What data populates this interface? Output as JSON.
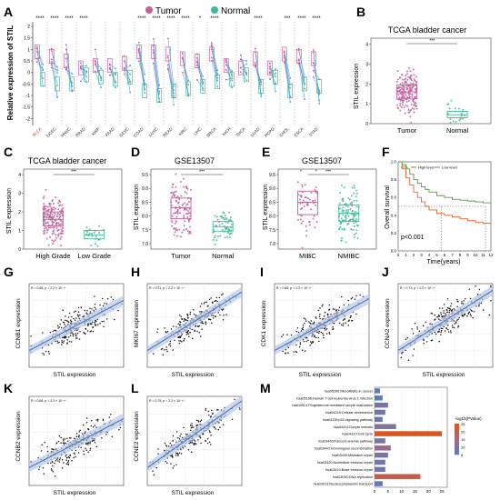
{
  "figure": {
    "panels": {
      "A": {
        "letter": "A"
      },
      "B": {
        "letter": "B"
      },
      "C": {
        "letter": "C"
      },
      "D": {
        "letter": "D"
      },
      "E": {
        "letter": "E"
      },
      "F": {
        "letter": "F"
      },
      "G": {
        "letter": "G"
      },
      "H": {
        "letter": "H"
      },
      "I": {
        "letter": "I"
      },
      "J": {
        "letter": "J"
      },
      "K": {
        "letter": "K"
      },
      "L": {
        "letter": "L"
      },
      "M": {
        "letter": "M"
      }
    },
    "colors": {
      "tumor": "#c0609c",
      "normal": "#3fb89a",
      "line": "#5a8fd0",
      "km_high": "#e1642c",
      "km_low": "#5a9a45",
      "scatter_fit": "#4b78c4",
      "scatter_ci": "#b8c8e6",
      "bar_low": "#4f7fc1",
      "bar_mid": "#a36a84",
      "bar_high": "#d9561f"
    }
  },
  "chart_data": [
    {
      "panel": "A",
      "type": "box",
      "legend": [
        "Tumor",
        "Normal"
      ],
      "ylabel": "Relative expression of STIL",
      "yticks": [
        "-2",
        "-1.5",
        "-1",
        "-0.5",
        "0",
        "0.5",
        "1",
        "1.5",
        "2"
      ],
      "ylim": [
        -2.3,
        2.2
      ],
      "categories": [
        "BLCA",
        "UCEC",
        "HNSC",
        "PRAD",
        "KIRP",
        "PAAD",
        "CESC",
        "COAD",
        "LUSC",
        "READ",
        "KIRC",
        "LIHC",
        "BRCA",
        "KICH",
        "THCA",
        "LUAD",
        "PCPG",
        "CHOL",
        "ESCA",
        "STAD"
      ],
      "significance": [
        "****",
        "****",
        "****",
        "****",
        "",
        "",
        "",
        "****",
        "****",
        "****",
        "****",
        "*",
        "****",
        "",
        "",
        "****",
        "",
        "***",
        "****",
        "****"
      ],
      "tumor_median": [
        0.9,
        0.7,
        0.5,
        0.2,
        0.3,
        0.3,
        0.4,
        0.9,
        0.9,
        0.8,
        0.6,
        0.5,
        0.8,
        0.3,
        0.2,
        0.6,
        0.2,
        0.8,
        0.7,
        0.6
      ],
      "normal_median": [
        -0.3,
        -0.5,
        -0.5,
        -0.1,
        -0.2,
        -0.3,
        -0.2,
        -0.8,
        -1.0,
        -0.8,
        -0.7,
        -0.6,
        -0.4,
        -0.3,
        -0.1,
        -0.6,
        -0.2,
        -0.8,
        -0.5,
        -0.6
      ]
    },
    {
      "panel": "B",
      "type": "box",
      "title": "TCGA bladder cancer",
      "ylabel": "STIL expression",
      "categories": [
        "Tumor",
        "Normal"
      ],
      "yticks": [
        "0",
        "1",
        "2",
        "3",
        "4"
      ],
      "ylim": [
        0,
        4.3
      ],
      "median": [
        1.6,
        0.45
      ],
      "q1": [
        1.25,
        0.3
      ],
      "q3": [
        1.95,
        0.62
      ],
      "significance": "***"
    },
    {
      "panel": "C",
      "type": "box",
      "title": "TCGA bladder cancer",
      "ylabel": "STIL expression",
      "categories": [
        "High Grade",
        "Low Grade"
      ],
      "yticks": [
        "0",
        "1",
        "2",
        "3",
        "4"
      ],
      "ylim": [
        0,
        4.3
      ],
      "median": [
        1.6,
        0.75
      ],
      "q1": [
        1.25,
        0.55
      ],
      "q3": [
        2.0,
        1.0
      ],
      "significance": "***"
    },
    {
      "panel": "D",
      "type": "box",
      "title": "GSE13507",
      "ylabel": "STIL expression",
      "categories": [
        "Tumor",
        "Normal"
      ],
      "yticks": [
        "7.0",
        "7.5",
        "8.0",
        "8.5",
        "9.0",
        "9.5"
      ],
      "ylim": [
        6.8,
        9.7
      ],
      "median": [
        8.3,
        7.6
      ],
      "q1": [
        7.9,
        7.45
      ],
      "q3": [
        8.65,
        7.8
      ],
      "significance": "***"
    },
    {
      "panel": "E",
      "type": "box",
      "title": "GSE13507",
      "ylabel": "STIL expression",
      "categories": [
        "MIBC",
        "NMIBC"
      ],
      "yticks": [
        "7.0",
        "7.5",
        "8.0",
        "8.5",
        "9.0",
        "9.5"
      ],
      "ylim": [
        6.8,
        9.7
      ],
      "median": [
        8.5,
        8.1
      ],
      "q1": [
        8.05,
        7.8
      ],
      "q3": [
        8.9,
        8.4
      ],
      "significance": "***"
    },
    {
      "panel": "F",
      "type": "line",
      "ylabel": "Overall survival",
      "xlabel": "Time(years)",
      "legend_title": "STIL",
      "legend": [
        "High level",
        "Low level"
      ],
      "xticks": [
        "0",
        "1",
        "2",
        "3",
        "4",
        "5",
        "6",
        "7",
        "8",
        "9",
        "10",
        "11",
        "12"
      ],
      "yticks": [
        "0.0",
        "0.2",
        "0.4",
        "0.6",
        "0.8",
        "1.0"
      ],
      "pvalue": "p<0.001",
      "series": [
        {
          "name": "High level",
          "x": [
            0,
            0.5,
            1,
            1.5,
            2,
            2.5,
            3,
            3.5,
            4,
            5,
            6,
            7,
            8,
            9,
            10,
            11,
            12
          ],
          "values": [
            1.0,
            0.92,
            0.82,
            0.74,
            0.66,
            0.6,
            0.55,
            0.5,
            0.46,
            0.42,
            0.4,
            0.38,
            0.36,
            0.34,
            0.32,
            0.31,
            0.3
          ]
        },
        {
          "name": "Low level",
          "x": [
            0,
            0.5,
            1,
            1.5,
            2,
            2.5,
            3,
            3.5,
            4,
            5,
            6,
            7,
            8,
            9,
            10,
            11,
            12
          ],
          "values": [
            1.0,
            0.97,
            0.92,
            0.86,
            0.8,
            0.76,
            0.72,
            0.69,
            0.66,
            0.62,
            0.6,
            0.58,
            0.57,
            0.56,
            0.55,
            0.54,
            0.53
          ]
        }
      ],
      "median_marks": [
        5.6,
        11.3
      ]
    },
    {
      "panel": "G",
      "type": "scatter",
      "xlabel": "STIL expression",
      "ylabel": "CCNB1 expression",
      "annotation": "R = 0.65, p < 2.2 × 10⁻¹⁶",
      "slope": 0.6
    },
    {
      "panel": "H",
      "type": "scatter",
      "xlabel": "STIL expression",
      "ylabel": "MKI67 expression",
      "annotation": "R = 0.71, p < 2.2 × 10⁻¹⁶",
      "slope": 0.7
    },
    {
      "panel": "I",
      "type": "scatter",
      "xlabel": "STIL expression",
      "ylabel": "CDK1 expression",
      "annotation": "R = 0.66, p < 2.2 × 10⁻¹⁶",
      "slope": 0.62
    },
    {
      "panel": "J",
      "type": "scatter",
      "xlabel": "STIL expression",
      "ylabel": "CCNA2 expression",
      "annotation": "R = 0.73, p < 2.2 × 10⁻¹⁶",
      "slope": 0.72
    },
    {
      "panel": "K",
      "type": "scatter",
      "xlabel": "STIL expression",
      "ylabel": "CCNB2 expression",
      "annotation": "R = 0.66, p < 2.2 × 10⁻¹⁶",
      "slope": 0.55
    },
    {
      "panel": "L",
      "type": "scatter",
      "xlabel": "STIL expression",
      "ylabel": "CCNE2 expression",
      "annotation": "R = 0.75, p < 2.2 × 10⁻¹⁶",
      "slope": 0.75
    },
    {
      "panel": "M",
      "type": "bar",
      "orientation": "horizontal",
      "legend_title": "-log10(PValue)",
      "legend_ticks": [
        "25",
        "20",
        "15",
        "10",
        "5"
      ],
      "xticks": [
        "0",
        "5",
        "10",
        "15",
        "20",
        "25"
      ],
      "categories": [
        "hsa05206:MicroRNAs in cancer",
        "hsa05166:Human T-cell leukemia virus 1 infection",
        "hsa04914:Progesterone-mediated oocyte maturation",
        "hsa04218:Cellular senescence",
        "hsa04115:p53 signaling pathway",
        "hsa04114:Oocyte meiosis",
        "hsa04110:Cell cycle",
        "hsa03460:Fanconi anemia pathway",
        "hsa03440:Homologous recombination",
        "hsa03430:Mismatch repair",
        "hsa03420:Nucleotide excision repair",
        "hsa03410:Base excision repair",
        "hsa03030:DNA replication",
        "hsa03013:Nucleocytoplasmic transport"
      ],
      "values": [
        2,
        3,
        5,
        4,
        3,
        8,
        25,
        4,
        6,
        5,
        4,
        4,
        17,
        3
      ],
      "pvalue_score": [
        2,
        2,
        6,
        4,
        4,
        8,
        26,
        6,
        11,
        7,
        5,
        5,
        20,
        3
      ]
    }
  ]
}
